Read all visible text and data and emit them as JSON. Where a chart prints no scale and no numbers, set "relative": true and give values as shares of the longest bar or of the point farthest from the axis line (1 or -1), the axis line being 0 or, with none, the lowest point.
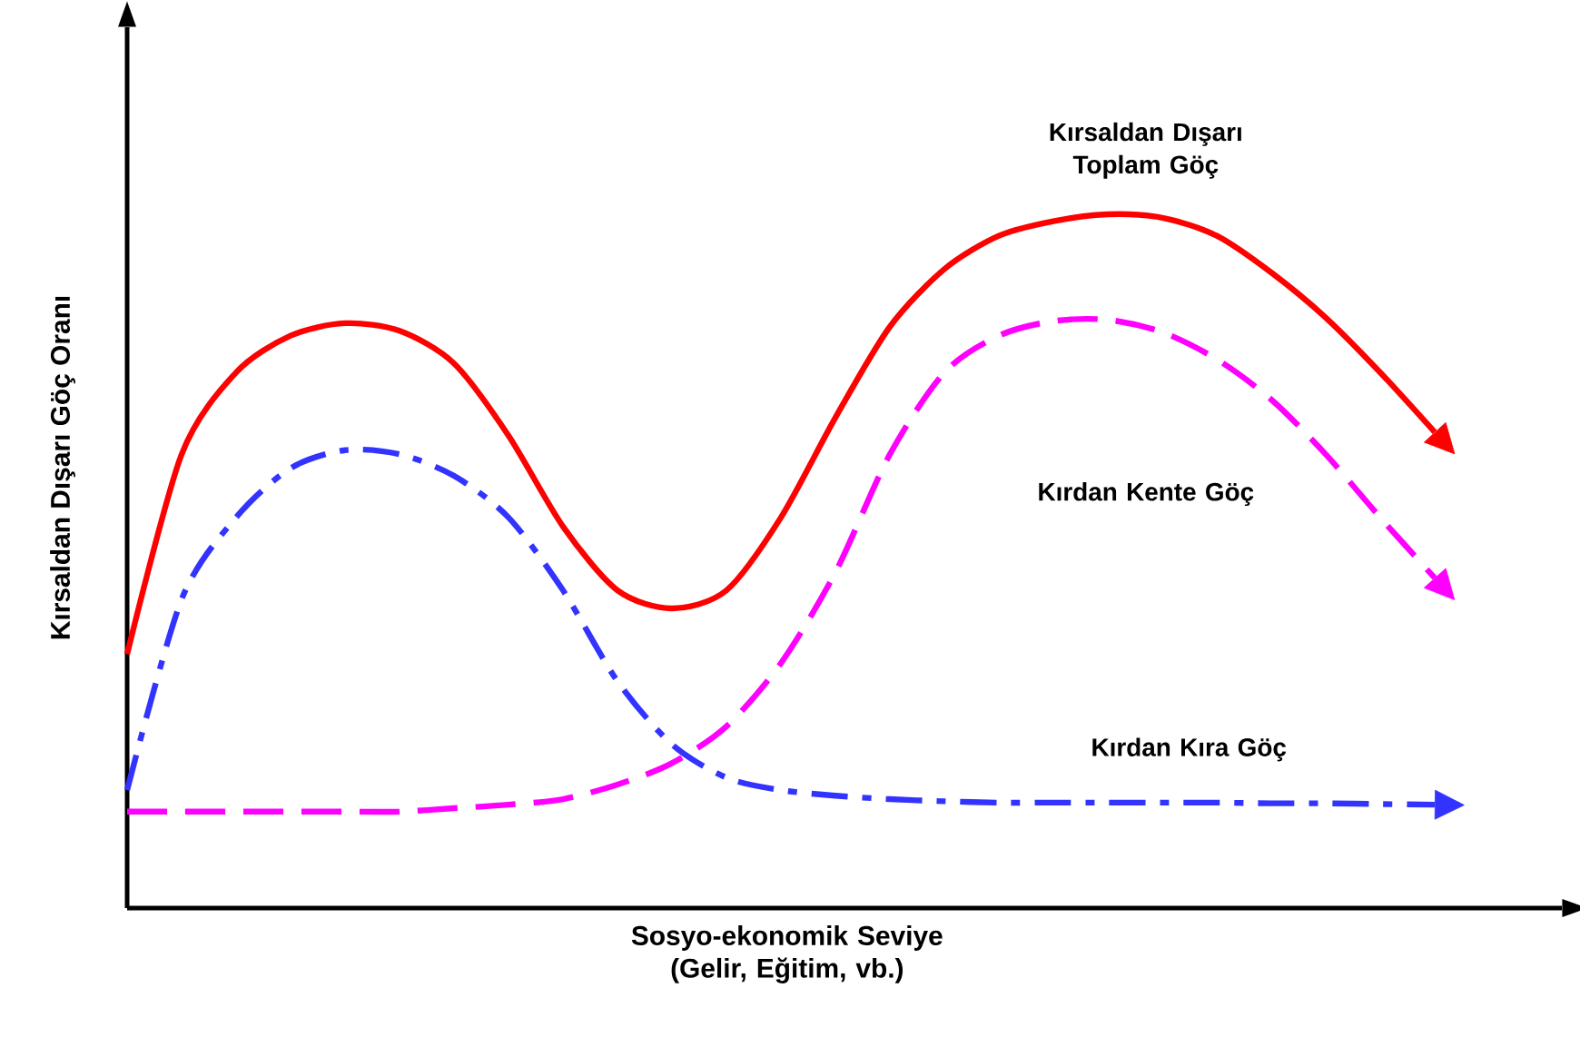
{
  "chart_data": {
    "type": "line",
    "relative": true,
    "xlabel": "Sosyo-ekonomik Seviye (Gelir, Eğitim, vb.)",
    "ylabel": "Kırsaldan Dışarı Göç Oranı",
    "categories": [
      null,
      null,
      null,
      null,
      null,
      null,
      null,
      null,
      null,
      null,
      null,
      null,
      null,
      null,
      null,
      null,
      null,
      null,
      null,
      null,
      null,
      null,
      null,
      null,
      null
    ],
    "series": [
      {
        "name": "Kırsaldan Dışarı Toplam Göç",
        "color": "#ff0000",
        "line_style": "solid",
        "values": [
          0.366,
          0.654,
          0.772,
          0.825,
          0.843,
          0.832,
          0.785,
          0.681,
          0.55,
          0.458,
          0.432,
          0.458,
          0.563,
          0.707,
          0.838,
          0.921,
          0.969,
          0.99,
          1.0,
          0.995,
          0.969,
          0.916,
          0.851,
          0.772,
          0.686
        ]
      },
      {
        "name": "Kırdan Kente Göç",
        "color": "#ff00ff",
        "line_style": "dashed",
        "values": [
          0.139,
          0.139,
          0.139,
          0.139,
          0.139,
          0.139,
          0.144,
          0.149,
          0.157,
          0.178,
          0.209,
          0.262,
          0.353,
          0.484,
          0.654,
          0.772,
          0.825,
          0.846,
          0.848,
          0.83,
          0.791,
          0.733,
          0.654,
          0.563,
          0.476
        ]
      },
      {
        "name": "Kırdan Kıra Göç",
        "color": "#3333ff",
        "line_style": "dashdot",
        "values": [
          0.17,
          0.445,
          0.563,
          0.634,
          0.66,
          0.654,
          0.623,
          0.563,
          0.458,
          0.327,
          0.236,
          0.188,
          0.17,
          0.162,
          0.157,
          0.154,
          0.152,
          0.152,
          0.152,
          0.152,
          0.152,
          0.151,
          0.151,
          0.15,
          0.149
        ]
      }
    ]
  }
}
